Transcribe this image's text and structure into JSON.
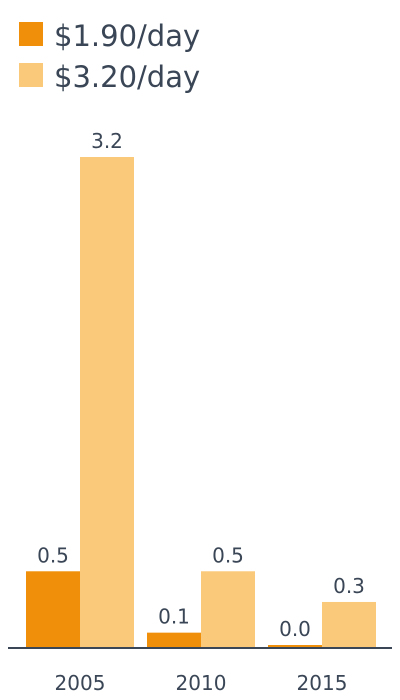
{
  "chart_data": {
    "type": "bar",
    "categories": [
      "2005",
      "2010",
      "2015"
    ],
    "series": [
      {
        "name": "$1.90/day",
        "values": [
          0.5,
          0.1,
          0.0
        ],
        "labels": [
          "0.5",
          "0.1",
          "0.0"
        ],
        "color": "#f0900a"
      },
      {
        "name": "$3.20/day",
        "values": [
          3.2,
          0.5,
          0.3
        ],
        "labels": [
          "3.2",
          "0.5",
          "0.3"
        ],
        "color": "#fbc97a"
      }
    ],
    "ylim": [
      0,
      3.2
    ],
    "legend": "top-left",
    "grid": false,
    "axis_color": "#3a4656"
  }
}
